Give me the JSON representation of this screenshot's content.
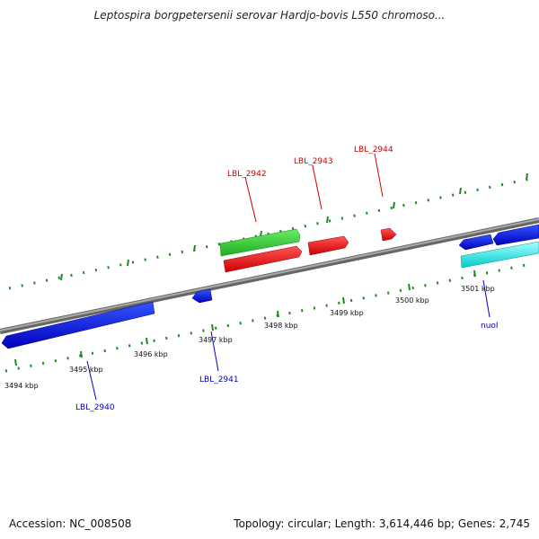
{
  "title": "Leptospira borgpetersenii serovar Hardjo-bovis L550 chromoso...",
  "footer": {
    "accession_label": "Accession:",
    "accession": "NC_008508",
    "topology_label": "Topology:",
    "topology": "circular",
    "length_label": "Length:",
    "length": "3,614,446 bp",
    "genes_label": "Genes:",
    "genes": "2,745"
  },
  "ticks": [
    {
      "label": "3494 kbp"
    },
    {
      "label": "3495 kbp"
    },
    {
      "label": "3496 kbp"
    },
    {
      "label": "3497 kbp"
    },
    {
      "label": "3498 kbp"
    },
    {
      "label": "3499 kbp"
    },
    {
      "label": "3500 kbp"
    },
    {
      "label": "3501 kbp"
    }
  ],
  "genes": [
    {
      "label": "LBL_2940",
      "color": "#0000cc"
    },
    {
      "label": "LBL_2941",
      "color": "#0000cc"
    },
    {
      "label": "LBL_2942",
      "color": "#cc0000"
    },
    {
      "label": "LBL_2943",
      "color": "#cc0000"
    },
    {
      "label": "LBL_2944",
      "color": "#cc0000"
    },
    {
      "label": "nuoI",
      "color": "#0000cc"
    }
  ],
  "colors": {
    "backbone": "#808080",
    "ticks": "#228822",
    "forward_red": "#ee1111",
    "cds_green": "#33cc33",
    "reverse_blue": "#1111dd",
    "cyan": "#00eeee"
  }
}
